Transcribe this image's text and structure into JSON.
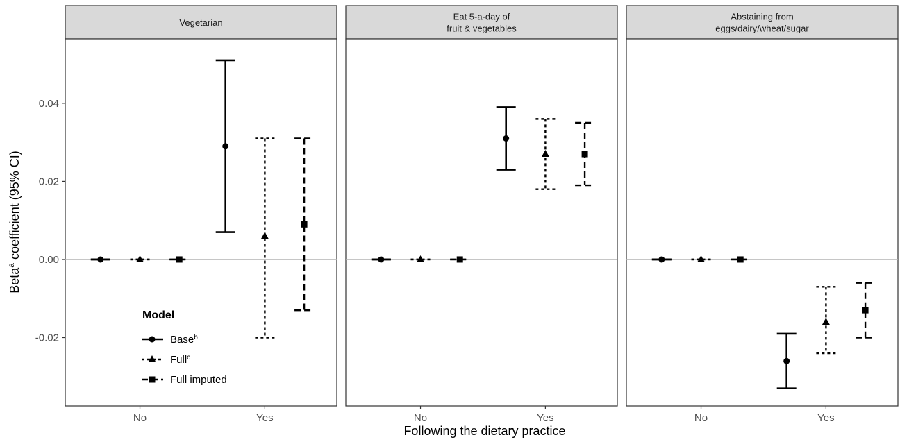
{
  "chart_data": {
    "type": "errorbar",
    "xlabel": "Following the dietary practice",
    "ylabel": {
      "text": "Beta",
      "sup": "a",
      "rest": " coefficient (95% CI)"
    },
    "categories": [
      "No",
      "Yes"
    ],
    "ylim": [
      -0.0375,
      0.0565
    ],
    "yticks": [
      -0.02,
      0.0,
      0.02,
      0.04
    ],
    "ytick_labels": [
      "-0.02",
      "0.00",
      "0.02",
      "0.04"
    ],
    "grid": false,
    "reference_line": 0,
    "legend": {
      "title": "Model",
      "placement": "bottom-left-inside-first-panel",
      "entries": [
        {
          "label": "Base",
          "sup": "b",
          "shape": "circle",
          "dash": "solid"
        },
        {
          "label": "Full",
          "sup": "c",
          "shape": "triangle",
          "dash": "dotted"
        },
        {
          "label": "Full imputed",
          "sup": "",
          "shape": "square",
          "dash": "dashed"
        }
      ]
    },
    "panels": [
      {
        "title_lines": [
          "Vegetarian"
        ],
        "series": [
          {
            "model": "Base",
            "points": [
              {
                "x": "No",
                "y": 0,
                "lo": 0,
                "hi": 0
              },
              {
                "x": "Yes",
                "y": 0.029,
                "lo": 0.007,
                "hi": 0.051
              }
            ]
          },
          {
            "model": "Full",
            "points": [
              {
                "x": "No",
                "y": 0,
                "lo": 0,
                "hi": 0
              },
              {
                "x": "Yes",
                "y": 0.006,
                "lo": -0.02,
                "hi": 0.031
              }
            ]
          },
          {
            "model": "Full imputed",
            "points": [
              {
                "x": "No",
                "y": 0,
                "lo": 0,
                "hi": 0
              },
              {
                "x": "Yes",
                "y": 0.009,
                "lo": -0.013,
                "hi": 0.031
              }
            ]
          }
        ]
      },
      {
        "title_lines": [
          "Eat 5-a-day of",
          "fruit & vegetables"
        ],
        "series": [
          {
            "model": "Base",
            "points": [
              {
                "x": "No",
                "y": 0,
                "lo": 0,
                "hi": 0
              },
              {
                "x": "Yes",
                "y": 0.031,
                "lo": 0.023,
                "hi": 0.039
              }
            ]
          },
          {
            "model": "Full",
            "points": [
              {
                "x": "No",
                "y": 0,
                "lo": 0,
                "hi": 0
              },
              {
                "x": "Yes",
                "y": 0.027,
                "lo": 0.018,
                "hi": 0.036
              }
            ]
          },
          {
            "model": "Full imputed",
            "points": [
              {
                "x": "No",
                "y": 0,
                "lo": 0,
                "hi": 0
              },
              {
                "x": "Yes",
                "y": 0.027,
                "lo": 0.019,
                "hi": 0.035
              }
            ]
          }
        ]
      },
      {
        "title_lines": [
          "Abstaining from",
          "eggs/dairy/wheat/sugar"
        ],
        "series": [
          {
            "model": "Base",
            "points": [
              {
                "x": "No",
                "y": 0,
                "lo": 0,
                "hi": 0
              },
              {
                "x": "Yes",
                "y": -0.026,
                "lo": -0.033,
                "hi": -0.019
              }
            ]
          },
          {
            "model": "Full",
            "points": [
              {
                "x": "No",
                "y": 0,
                "lo": 0,
                "hi": 0
              },
              {
                "x": "Yes",
                "y": -0.016,
                "lo": -0.024,
                "hi": -0.007
              }
            ]
          },
          {
            "model": "Full imputed",
            "points": [
              {
                "x": "No",
                "y": 0,
                "lo": 0,
                "hi": 0
              },
              {
                "x": "Yes",
                "y": -0.013,
                "lo": -0.02,
                "hi": -0.006
              }
            ]
          }
        ]
      }
    ]
  }
}
